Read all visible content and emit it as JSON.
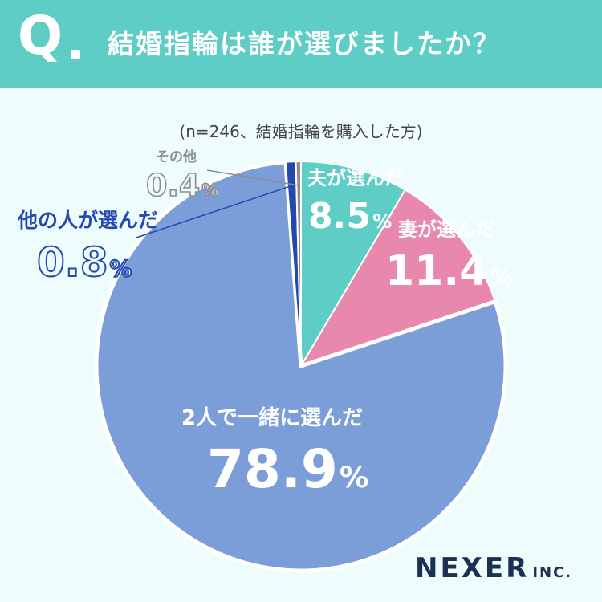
{
  "header": {
    "q": "Q",
    "title": "結婚指輪は誰が選びましたか？"
  },
  "note": "(n=246、結婚指輪を購入した方)",
  "brand": {
    "name": "NEXER",
    "suffix": "INC."
  },
  "unit": "%",
  "chart_data": {
    "type": "pie",
    "title": "結婚指輪は誰が選びましたか？",
    "slices": [
      {
        "label": "夫が選んだ",
        "value": "8.5",
        "color": "#5ecdc6"
      },
      {
        "label": "妻が選んだ",
        "value": "11.4",
        "color": "#e788ac"
      },
      {
        "label": "2人で一緒に選んだ",
        "value": "78.9",
        "color": "#7b9ed9"
      },
      {
        "label": "他の人が選んだ",
        "value": "0.8",
        "color": "#2447b0"
      },
      {
        "label": "その他",
        "value": "0.4",
        "color": "#8d8d8d"
      }
    ]
  }
}
